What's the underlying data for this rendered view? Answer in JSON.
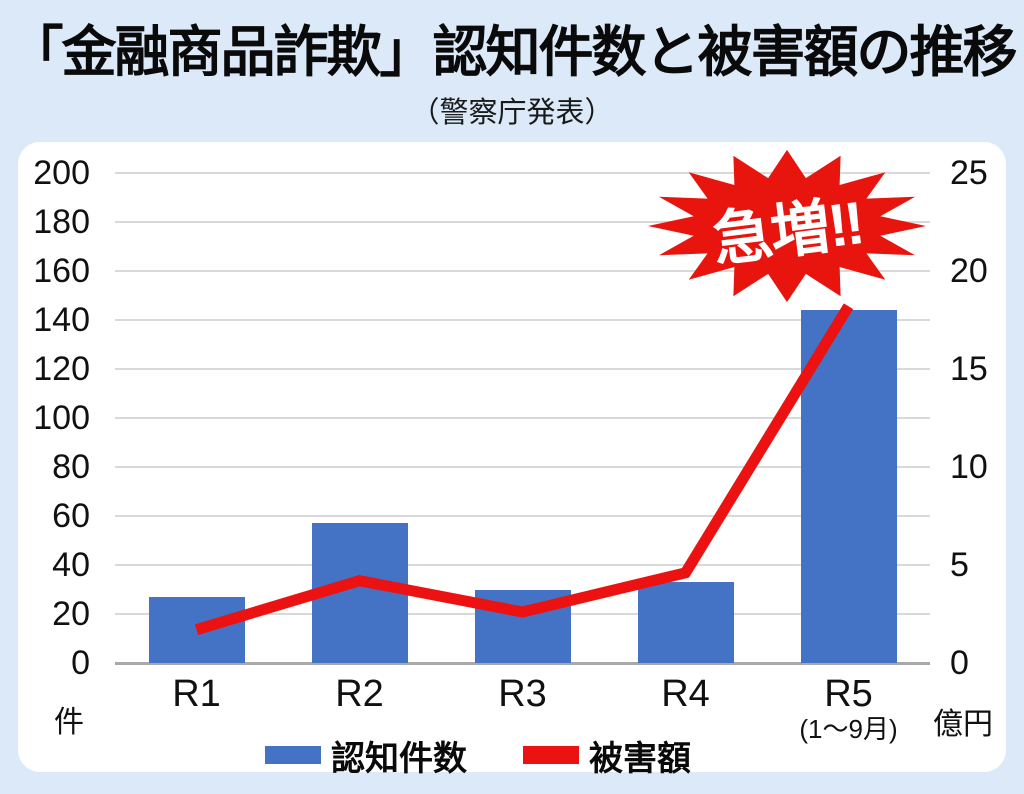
{
  "header": {
    "title": "「金融商品詐欺」認知件数と被害額の推移",
    "subtitle": "（警察庁発表）"
  },
  "chart_data": {
    "type": "bar",
    "combo": "bar+line dual-axis",
    "categories": [
      "R1",
      "R2",
      "R3",
      "R4",
      "R5"
    ],
    "x_note": "(1〜9月)",
    "x_note_category": "R5",
    "series": [
      {
        "name": "認知件数",
        "type": "bar",
        "axis": "left",
        "color": "#4473c5",
        "values": [
          27,
          57,
          30,
          33,
          144
        ]
      },
      {
        "name": "被害額",
        "type": "line",
        "axis": "right",
        "color": "#ec1212",
        "values": [
          1.7,
          4.2,
          2.6,
          4.6,
          18.2
        ]
      }
    ],
    "left_axis": {
      "unit": "件",
      "min": 0,
      "max": 200,
      "step": 20,
      "tick_labels": [
        "200",
        "180",
        "160",
        "140",
        "120",
        "100",
        "80",
        "60",
        "40",
        "20",
        "0"
      ]
    },
    "right_axis": {
      "unit": "億円",
      "min": 0,
      "max": 25,
      "step": 5,
      "tick_labels": [
        "25",
        "20",
        "15",
        "10",
        "5",
        "0"
      ]
    },
    "grid": true,
    "legend_position": "bottom"
  },
  "annotation": {
    "text": "急増‼"
  },
  "colors": {
    "background": "#dce9f9",
    "card": "#ffffff",
    "bar": "#4473c5",
    "line": "#ec1212",
    "grid": "#d9d9d9",
    "baseline": "#a9a9a9",
    "text": "#111111",
    "burst": "#e8150f"
  }
}
